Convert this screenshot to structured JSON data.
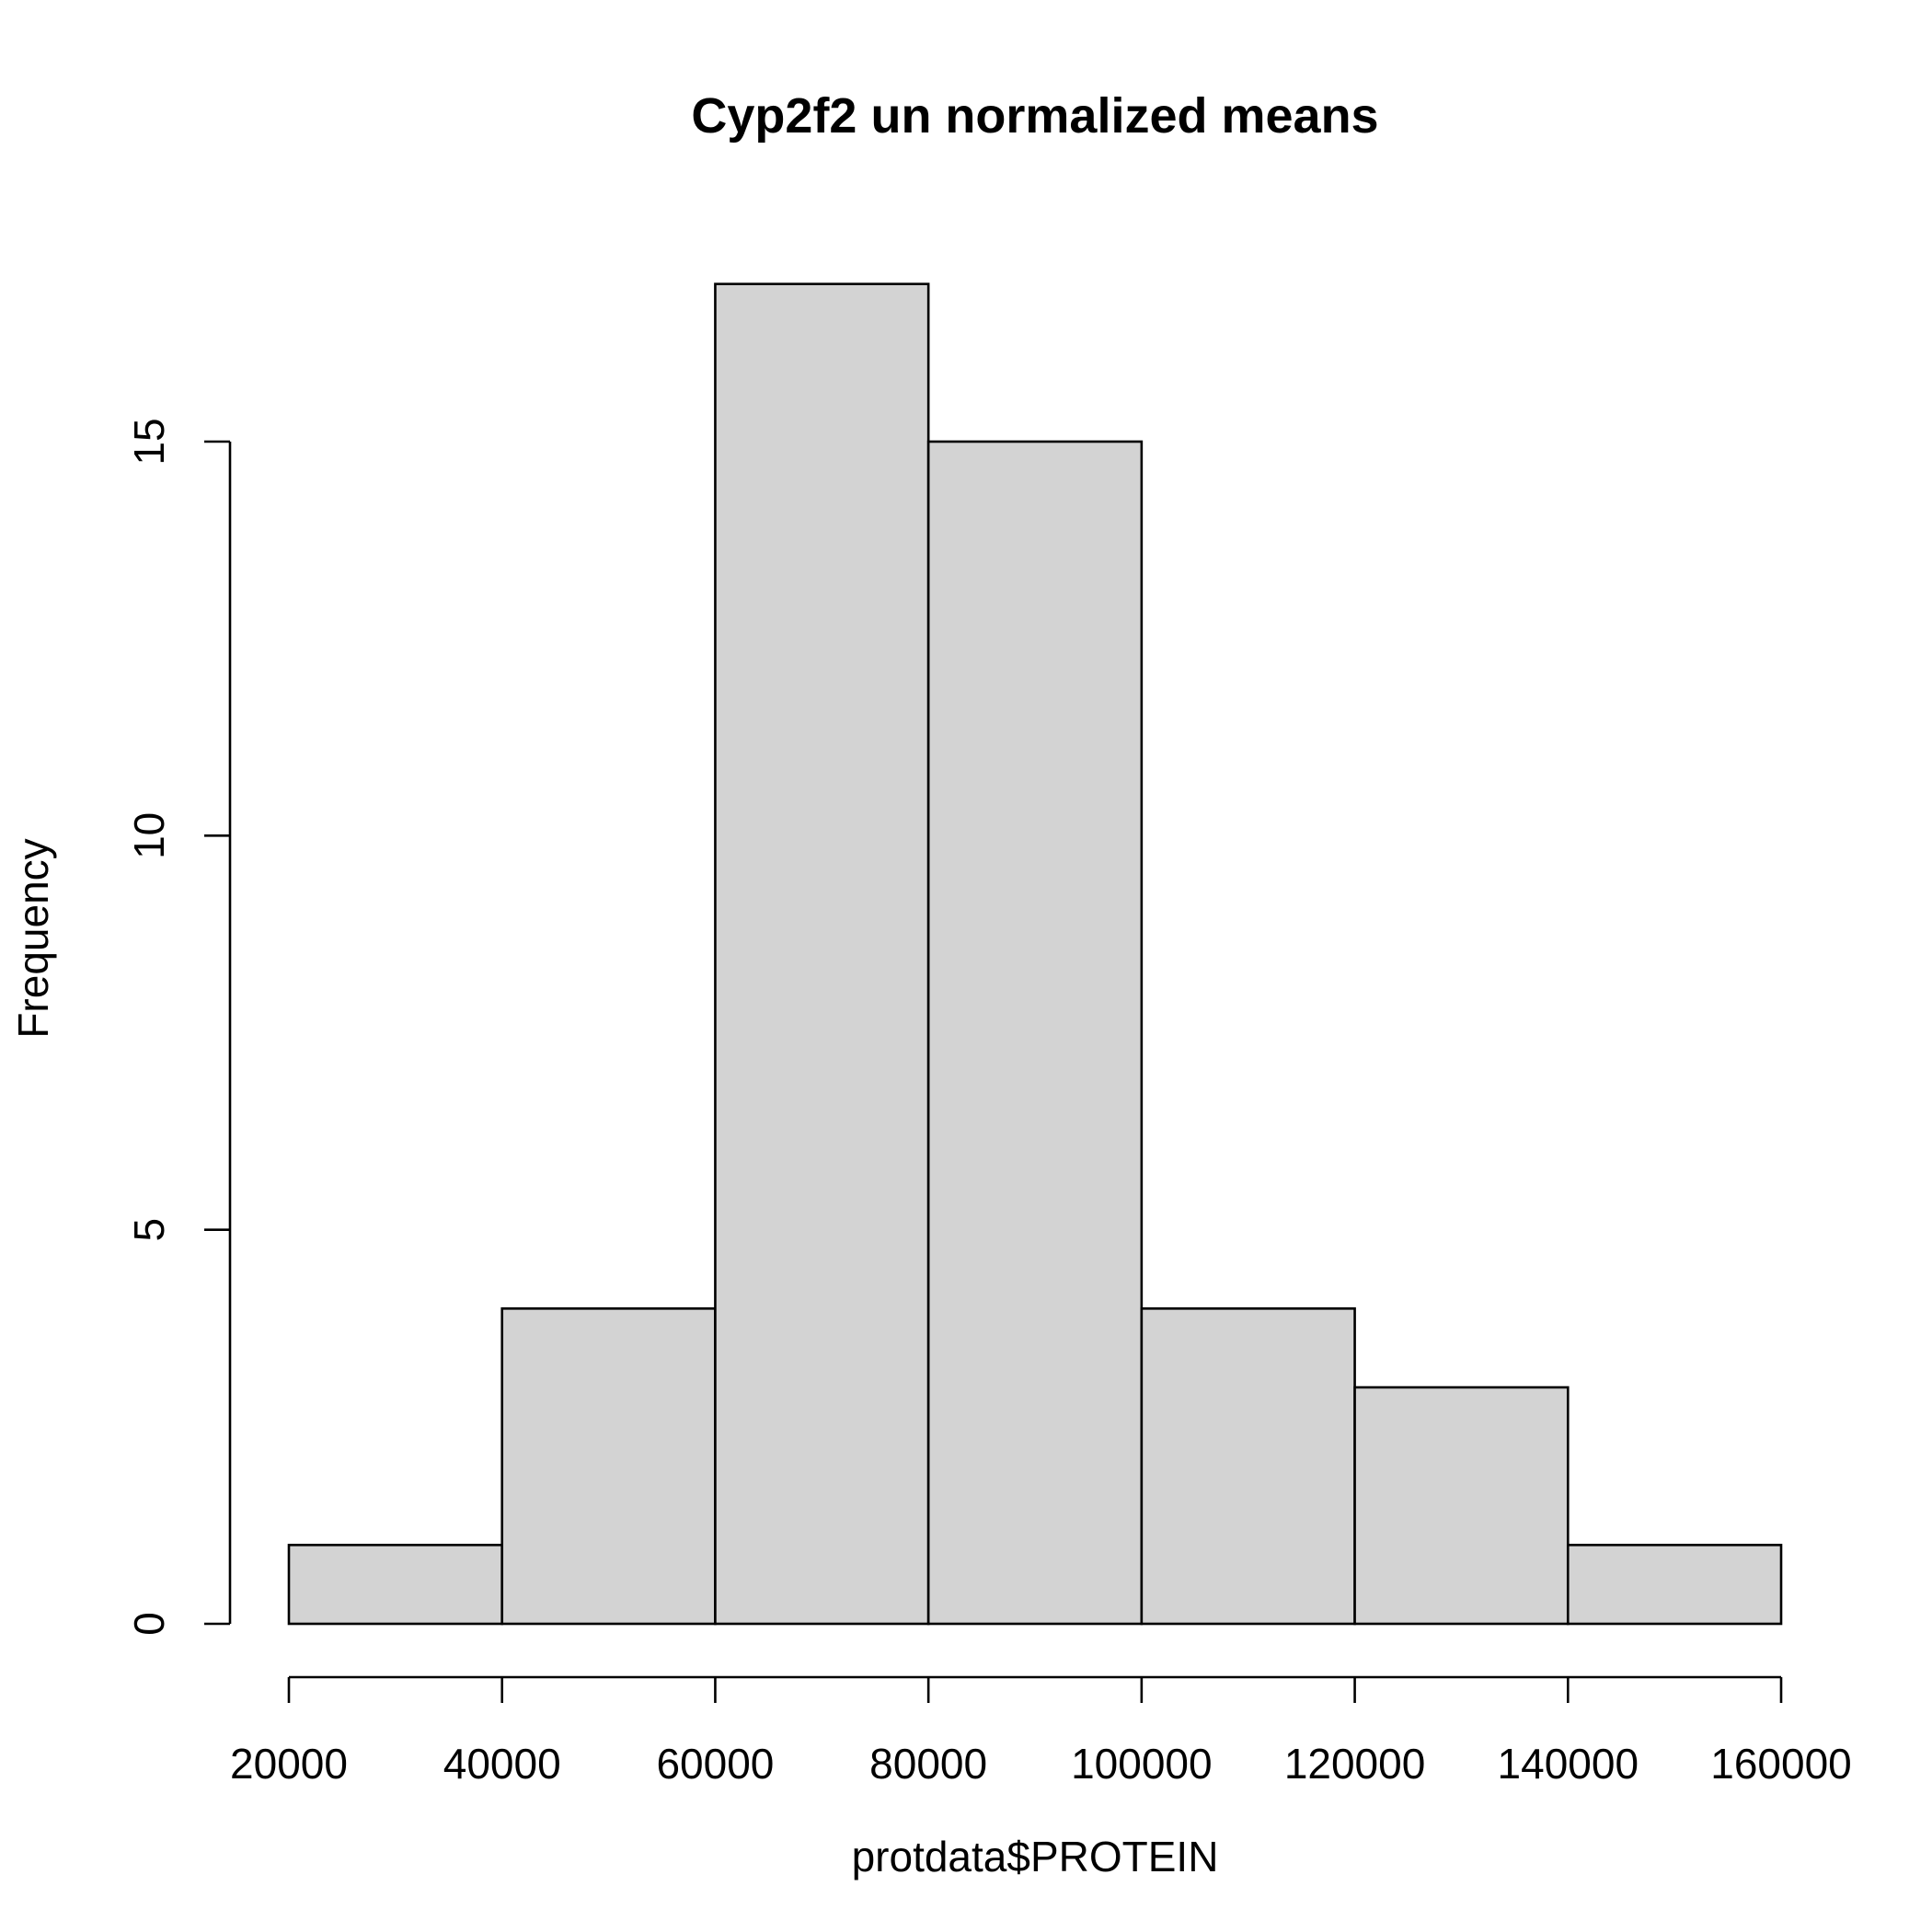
{
  "chart_data": {
    "type": "bar",
    "subtype": "histogram",
    "title": "Cyp2f2 un normalized means",
    "xlabel": "protdata$PROTEIN",
    "ylabel": "Frequency",
    "bin_edges": [
      20000,
      40000,
      60000,
      80000,
      100000,
      120000,
      140000,
      160000
    ],
    "values": [
      1,
      4,
      17,
      15,
      4,
      3,
      1
    ],
    "x_ticks": [
      20000,
      40000,
      60000,
      80000,
      100000,
      120000,
      140000,
      160000
    ],
    "x_tick_labels": [
      "20000",
      "40000",
      "60000",
      "80000",
      "100000",
      "120000",
      "140000",
      "160000"
    ],
    "y_ticks": [
      0,
      5,
      10,
      15
    ],
    "y_tick_labels": [
      "0",
      "5",
      "10",
      "15"
    ],
    "xlim": [
      20000,
      160000
    ],
    "ylim": [
      0,
      17
    ],
    "grid": false,
    "legend": "none",
    "colors": {
      "bar_fill": "#d3d3d3",
      "bar_stroke": "#000000",
      "background": "#ffffff"
    }
  }
}
